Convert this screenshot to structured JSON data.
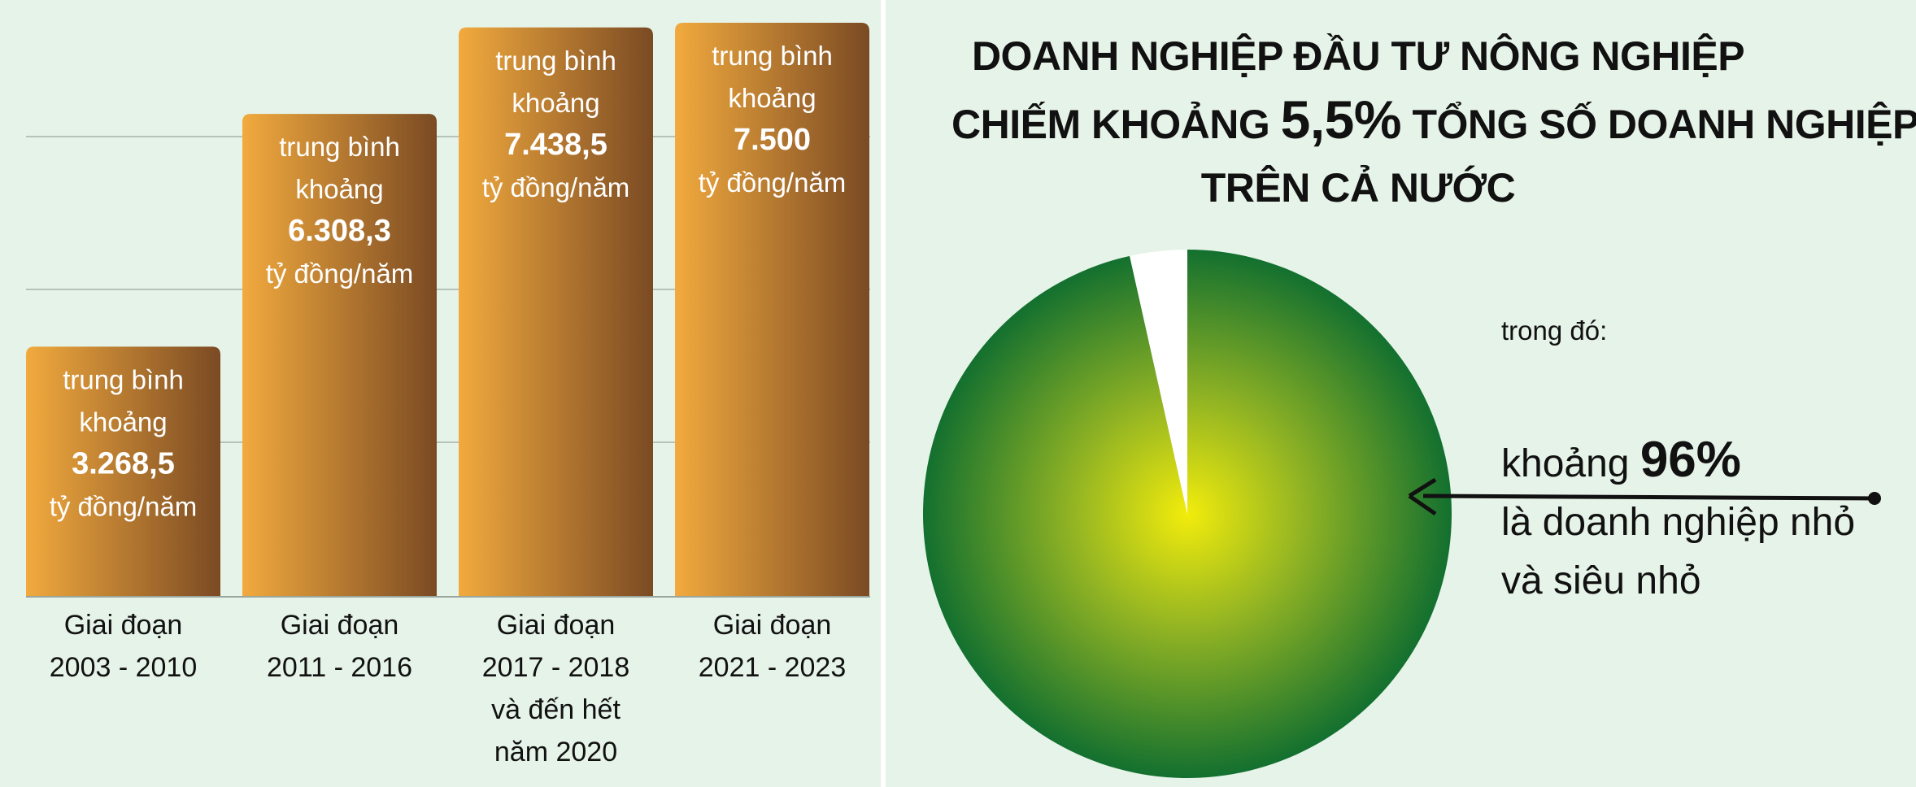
{
  "chart_data": [
    {
      "type": "bar",
      "categories": [
        [
          "Giai đoạn",
          "2003 - 2010"
        ],
        [
          "Giai đoạn",
          "2011 - 2016"
        ],
        [
          "Giai đoạn",
          "2017 - 2018",
          "và đến hết",
          "năm 2020"
        ],
        [
          "Giai đoạn",
          "2021 - 2023"
        ]
      ],
      "values": [
        3268.5,
        6308.3,
        7438.5,
        7500
      ],
      "value_labels": [
        "3.268,5",
        "6.308,3",
        "7.438,5",
        "7.500"
      ],
      "label_prefix": [
        "trung bình",
        "khoảng"
      ],
      "label_suffix": "tỷ đồng/năm",
      "ylim": [
        0,
        7500
      ],
      "grid": true
    },
    {
      "type": "pie",
      "slices": [
        {
          "label": "doanh nghiệp đầu tư nông nghiệp",
          "value": 96.5
        },
        {
          "label": "other",
          "value": 3.5
        }
      ],
      "title": {
        "line1": "DOANH NGHIỆP ĐẦU TƯ NÔNG NGHIỆP",
        "line2_before": "CHIẾM KHOẢNG",
        "line2_value": "5,5%",
        "line2_after": "TỔNG SỐ DOANH NGHIỆP",
        "line3": "TRÊN CẢ NƯỚC"
      },
      "annotation": {
        "intro": "trong đó:",
        "before_value": "khoảng",
        "value": "96%",
        "line2": "là doanh nghiệp nhỏ",
        "line3": "và siêu nhỏ"
      }
    }
  ],
  "colors": {
    "background": "#e6f3e8",
    "bar_light": "#f2aa3e",
    "bar_dark": "#7a4a23",
    "pie_center": "#f2ec0c",
    "pie_edge": "#13702f",
    "pie_gap": "#ffffff"
  }
}
